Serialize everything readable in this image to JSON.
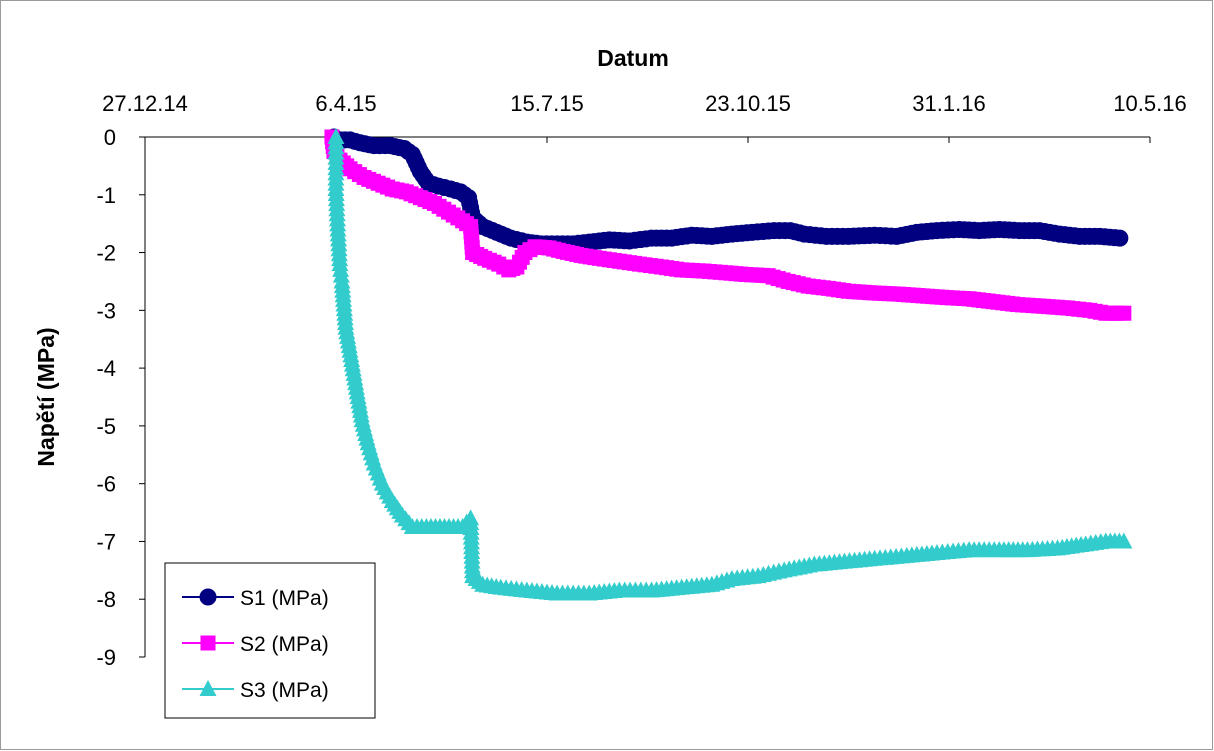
{
  "chart_data": {
    "type": "line",
    "xlabel": "Datum",
    "ylabel": "Napětí (MPa)",
    "x_axis_position": "top",
    "x_ticks": [
      "27.12.14",
      "6.4.15",
      "15.7.15",
      "23.10.15",
      "31.1.16",
      "10.5.16"
    ],
    "x_tick_values": [
      "2014-12-27",
      "2015-04-06",
      "2015-07-15",
      "2015-10-23",
      "2016-01-31",
      "2016-05-10"
    ],
    "xlim": [
      "2014-12-27",
      "2016-05-10"
    ],
    "y_ticks": [
      "0",
      "-1",
      "-2",
      "-3",
      "-4",
      "-5",
      "-6",
      "-7",
      "-8",
      "-9"
    ],
    "ylim": [
      -9,
      0
    ],
    "grid": false,
    "legend_position": "bottom-left",
    "series": [
      {
        "name": "S1 (MPa)",
        "color": "#000080",
        "marker": "circle",
        "points": [
          [
            "2015-03-31",
            0.0
          ],
          [
            "2015-04-03",
            -0.05
          ],
          [
            "2015-04-08",
            -0.05
          ],
          [
            "2015-04-13",
            -0.1
          ],
          [
            "2015-04-20",
            -0.15
          ],
          [
            "2015-04-28",
            -0.15
          ],
          [
            "2015-05-05",
            -0.2
          ],
          [
            "2015-05-09",
            -0.3
          ],
          [
            "2015-05-13",
            -0.6
          ],
          [
            "2015-05-17",
            -0.8
          ],
          [
            "2015-05-22",
            -0.85
          ],
          [
            "2015-05-28",
            -0.9
          ],
          [
            "2015-06-02",
            -0.95
          ],
          [
            "2015-06-06",
            -1.05
          ],
          [
            "2015-06-08",
            -1.4
          ],
          [
            "2015-06-13",
            -1.55
          ],
          [
            "2015-06-20",
            -1.65
          ],
          [
            "2015-06-27",
            -1.75
          ],
          [
            "2015-07-05",
            -1.82
          ],
          [
            "2015-07-12",
            -1.85
          ],
          [
            "2015-07-20",
            -1.85
          ],
          [
            "2015-07-28",
            -1.85
          ],
          [
            "2015-08-05",
            -1.82
          ],
          [
            "2015-08-15",
            -1.78
          ],
          [
            "2015-08-25",
            -1.8
          ],
          [
            "2015-09-05",
            -1.75
          ],
          [
            "2015-09-15",
            -1.75
          ],
          [
            "2015-09-25",
            -1.7
          ],
          [
            "2015-10-05",
            -1.72
          ],
          [
            "2015-10-15",
            -1.68
          ],
          [
            "2015-10-25",
            -1.65
          ],
          [
            "2015-11-05",
            -1.62
          ],
          [
            "2015-11-13",
            -1.62
          ],
          [
            "2015-11-20",
            -1.68
          ],
          [
            "2015-12-01",
            -1.72
          ],
          [
            "2015-12-12",
            -1.72
          ],
          [
            "2015-12-25",
            -1.7
          ],
          [
            "2016-01-05",
            -1.72
          ],
          [
            "2016-01-15",
            -1.65
          ],
          [
            "2016-01-25",
            -1.62
          ],
          [
            "2016-02-05",
            -1.6
          ],
          [
            "2016-02-15",
            -1.62
          ],
          [
            "2016-02-25",
            -1.6
          ],
          [
            "2016-03-06",
            -1.62
          ],
          [
            "2016-03-16",
            -1.62
          ],
          [
            "2016-03-26",
            -1.68
          ],
          [
            "2016-04-05",
            -1.72
          ],
          [
            "2016-04-15",
            -1.72
          ],
          [
            "2016-04-25",
            -1.75
          ]
        ]
      },
      {
        "name": "S2 (MPa)",
        "color": "#ff00ff",
        "marker": "square",
        "points": [
          [
            "2015-03-30",
            0.0
          ],
          [
            "2015-03-31",
            -0.25
          ],
          [
            "2015-04-03",
            -0.4
          ],
          [
            "2015-04-08",
            -0.55
          ],
          [
            "2015-04-15",
            -0.7
          ],
          [
            "2015-04-22",
            -0.8
          ],
          [
            "2015-04-29",
            -0.9
          ],
          [
            "2015-05-06",
            -0.95
          ],
          [
            "2015-05-13",
            -1.05
          ],
          [
            "2015-05-20",
            -1.15
          ],
          [
            "2015-05-27",
            -1.3
          ],
          [
            "2015-06-03",
            -1.45
          ],
          [
            "2015-06-07",
            -1.55
          ],
          [
            "2015-06-08",
            -2.0
          ],
          [
            "2015-06-14",
            -2.1
          ],
          [
            "2015-06-21",
            -2.2
          ],
          [
            "2015-06-26",
            -2.3
          ],
          [
            "2015-06-30",
            -2.25
          ],
          [
            "2015-07-04",
            -2.0
          ],
          [
            "2015-07-09",
            -1.9
          ],
          [
            "2015-07-16",
            -1.92
          ],
          [
            "2015-07-23",
            -1.98
          ],
          [
            "2015-08-01",
            -2.05
          ],
          [
            "2015-08-10",
            -2.1
          ],
          [
            "2015-08-20",
            -2.15
          ],
          [
            "2015-08-30",
            -2.2
          ],
          [
            "2015-09-10",
            -2.25
          ],
          [
            "2015-09-20",
            -2.3
          ],
          [
            "2015-10-01",
            -2.32
          ],
          [
            "2015-10-12",
            -2.35
          ],
          [
            "2015-10-22",
            -2.38
          ],
          [
            "2015-11-02",
            -2.4
          ],
          [
            "2015-11-12",
            -2.5
          ],
          [
            "2015-11-22",
            -2.58
          ],
          [
            "2015-12-02",
            -2.62
          ],
          [
            "2015-12-12",
            -2.67
          ],
          [
            "2015-12-25",
            -2.7
          ],
          [
            "2016-01-06",
            -2.72
          ],
          [
            "2016-01-18",
            -2.75
          ],
          [
            "2016-01-30",
            -2.78
          ],
          [
            "2016-02-10",
            -2.8
          ],
          [
            "2016-02-22",
            -2.85
          ],
          [
            "2016-03-05",
            -2.9
          ],
          [
            "2016-03-18",
            -2.93
          ],
          [
            "2016-03-30",
            -2.96
          ],
          [
            "2016-04-10",
            -3.0
          ],
          [
            "2016-04-18",
            -3.05
          ],
          [
            "2016-04-27",
            -3.05
          ]
        ]
      },
      {
        "name": "S3 (MPa)",
        "color": "#33cccc",
        "marker": "triangle",
        "points": [
          [
            "2015-04-01",
            0.0
          ],
          [
            "2015-04-01",
            -0.9
          ],
          [
            "2015-04-02",
            -1.6
          ],
          [
            "2015-04-03",
            -2.2
          ],
          [
            "2015-04-04",
            -2.5
          ],
          [
            "2015-04-05",
            -2.9
          ],
          [
            "2015-04-06",
            -3.3
          ],
          [
            "2015-04-08",
            -3.7
          ],
          [
            "2015-04-10",
            -4.1
          ],
          [
            "2015-04-12",
            -4.5
          ],
          [
            "2015-04-14",
            -4.9
          ],
          [
            "2015-04-17",
            -5.3
          ],
          [
            "2015-04-20",
            -5.65
          ],
          [
            "2015-04-24",
            -6.0
          ],
          [
            "2015-04-29",
            -6.3
          ],
          [
            "2015-05-04",
            -6.55
          ],
          [
            "2015-05-09",
            -6.75
          ],
          [
            "2015-05-16",
            -6.75
          ],
          [
            "2015-05-25",
            -6.75
          ],
          [
            "2015-06-03",
            -6.75
          ],
          [
            "2015-06-07",
            -6.6
          ],
          [
            "2015-06-08",
            -7.6
          ],
          [
            "2015-06-13",
            -7.75
          ],
          [
            "2015-06-22",
            -7.8
          ],
          [
            "2015-07-05",
            -7.85
          ],
          [
            "2015-07-20",
            -7.9
          ],
          [
            "2015-08-05",
            -7.9
          ],
          [
            "2015-08-20",
            -7.85
          ],
          [
            "2015-09-05",
            -7.85
          ],
          [
            "2015-09-20",
            -7.8
          ],
          [
            "2015-10-05",
            -7.75
          ],
          [
            "2015-10-15",
            -7.65
          ],
          [
            "2015-10-28",
            -7.6
          ],
          [
            "2015-11-10",
            -7.5
          ],
          [
            "2015-11-25",
            -7.4
          ],
          [
            "2015-12-10",
            -7.35
          ],
          [
            "2015-12-25",
            -7.3
          ],
          [
            "2016-01-10",
            -7.25
          ],
          [
            "2016-01-25",
            -7.2
          ],
          [
            "2016-02-10",
            -7.15
          ],
          [
            "2016-02-25",
            -7.15
          ],
          [
            "2016-03-10",
            -7.15
          ],
          [
            "2016-03-25",
            -7.12
          ],
          [
            "2016-04-08",
            -7.05
          ],
          [
            "2016-04-18",
            -7.0
          ],
          [
            "2016-04-27",
            -7.0
          ]
        ]
      }
    ]
  }
}
